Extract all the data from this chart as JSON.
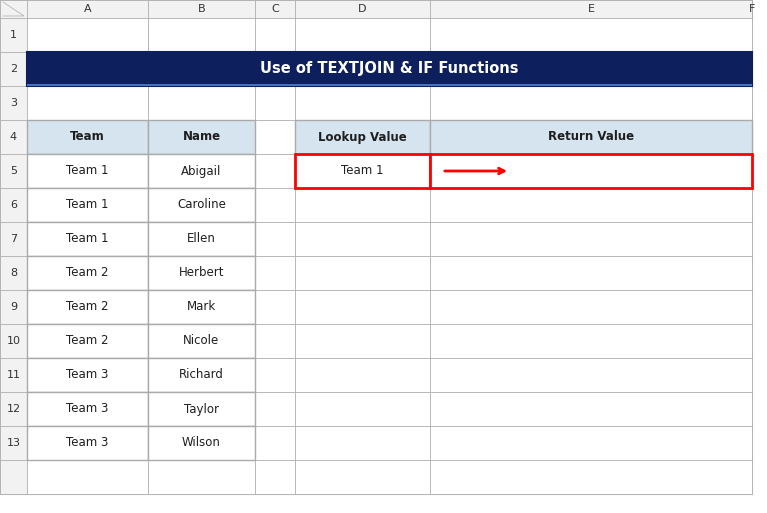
{
  "title": "Use of TEXTJOIN & IF Functions",
  "title_bg": "#0D1F5C",
  "title_fg": "#FFFFFF",
  "col_headers": [
    "A",
    "B",
    "C",
    "D",
    "E",
    "F"
  ],
  "left_table_headers": [
    "Team",
    "Name"
  ],
  "left_table_data": [
    [
      "Team 1",
      "Abigail"
    ],
    [
      "Team 1",
      "Caroline"
    ],
    [
      "Team 1",
      "Ellen"
    ],
    [
      "Team 2",
      "Herbert"
    ],
    [
      "Team 2",
      "Mark"
    ],
    [
      "Team 2",
      "Nicole"
    ],
    [
      "Team 3",
      "Richard"
    ],
    [
      "Team 3",
      "Taylor"
    ],
    [
      "Team 3",
      "Wilson"
    ]
  ],
  "right_table_headers": [
    "Lookup Value",
    "Return Value"
  ],
  "right_lookup_value": "Team 1",
  "header_bg": "#D6E4F0",
  "cell_bg": "#FFFFFF",
  "grid_color": "#AAAAAA",
  "col_header_bg": "#F2F2F2",
  "row_header_bg": "#F2F2F2",
  "arrow_color": "#FF0000",
  "highlight_border_color": "#FF0000",
  "bg_color": "#FFFFFF",
  "title_bar_bottom_border": "#4472C4",
  "font_size": 8.5,
  "title_font_size": 10.5
}
